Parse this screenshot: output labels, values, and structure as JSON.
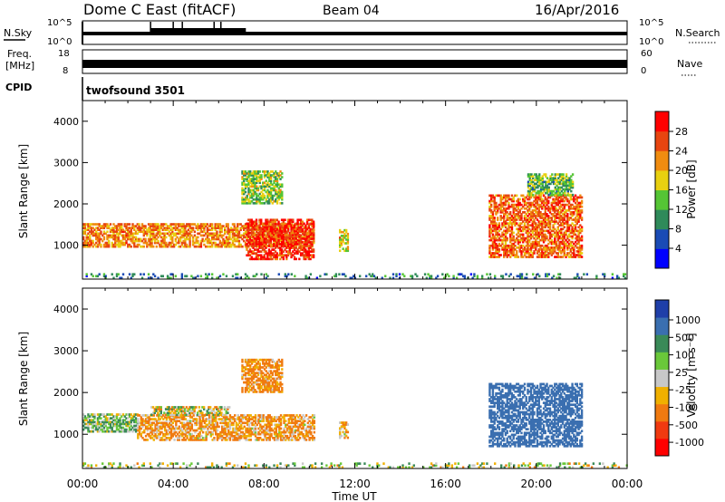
{
  "header": {
    "station": "Dome C East (fitACF)",
    "beam": "Beam 04",
    "date": "16/Apr/2016"
  },
  "top_panels": {
    "nsky_label": "N.Sky",
    "nsky_ticks": [
      "10^5",
      "10^0"
    ],
    "nsearch_label": "N.Search",
    "nsearch_ticks": [
      "10^5",
      "10^0"
    ],
    "freq_label": "Freq.",
    "freq_unit": "[MHz]",
    "freq_ticks": [
      "18",
      "8"
    ],
    "nave_label": "Nave",
    "nave_ticks": [
      "60",
      "0"
    ],
    "cpid_label": "CPID",
    "cpid_value": "twofsound 3501"
  },
  "chart_data": [
    {
      "type": "heatmap",
      "panel": "power",
      "ylabel": "Slant Range [km]",
      "xlabel": "",
      "ylim": [
        180,
        4500
      ],
      "yticks": [
        "1000",
        "2000",
        "3000",
        "4000"
      ],
      "colorbar": {
        "label": "Power [dB]",
        "ticks": [
          "4",
          "8",
          "12",
          "16",
          "20",
          "24",
          "28"
        ],
        "range": [
          0,
          30
        ],
        "colors": [
          "#0000ff",
          "#1a4bb5",
          "#2f8a5a",
          "#55c535",
          "#e8d010",
          "#f08c10",
          "#e84510",
          "#ff0000"
        ]
      },
      "echo_regions": [
        {
          "t": [
            0.0,
            10.2
          ],
          "r": [
            950,
            1500
          ],
          "level": 22
        },
        {
          "t": [
            7.2,
            10.2
          ],
          "r": [
            650,
            1600
          ],
          "level": 28
        },
        {
          "t": [
            7.0,
            8.8
          ],
          "r": [
            2000,
            2800
          ],
          "level": 14
        },
        {
          "t": [
            11.3,
            11.7
          ],
          "r": [
            850,
            1350
          ],
          "level": 18
        },
        {
          "t": [
            17.9,
            22.0
          ],
          "r": [
            700,
            2200
          ],
          "level": 24
        },
        {
          "t": [
            19.6,
            21.6
          ],
          "r": [
            2200,
            2700
          ],
          "level": 12
        },
        {
          "t": [
            0.0,
            24.0
          ],
          "r": [
            190,
            320
          ],
          "level": 8
        }
      ]
    },
    {
      "type": "heatmap",
      "panel": "velocity",
      "ylabel": "Slant Range [km]",
      "xlabel": "Time UT",
      "ylim": [
        180,
        4500
      ],
      "yticks": [
        "1000",
        "2000",
        "3000",
        "4000"
      ],
      "xticks": [
        "00:00",
        "04:00",
        "08:00",
        "12:00",
        "16:00",
        "20:00",
        "00:00"
      ],
      "xlim_hours": [
        0,
        24
      ],
      "colorbar": {
        "label": "Velocity [m s⁻¹]",
        "ticks": [
          "1000",
          "500",
          "100",
          "25",
          "-25",
          "-100",
          "-500",
          "-1000"
        ],
        "colors": [
          "#1f3fa8",
          "#3a6fb0",
          "#3a8a58",
          "#6ac83a",
          "#c8c8c8",
          "#f0b000",
          "#f07a10",
          "#f03a10",
          "#ff0000"
        ]
      },
      "echo_regions": [
        {
          "t": [
            0.0,
            2.4
          ],
          "r": [
            1050,
            1500
          ],
          "velocity": 80
        },
        {
          "t": [
            2.4,
            10.2
          ],
          "r": [
            850,
            1450
          ],
          "velocity": -120
        },
        {
          "t": [
            3.0,
            6.5
          ],
          "r": [
            1450,
            1650
          ],
          "velocity": 0
        },
        {
          "t": [
            7.0,
            8.8
          ],
          "r": [
            2000,
            2800
          ],
          "velocity": -150
        },
        {
          "t": [
            11.3,
            11.7
          ],
          "r": [
            900,
            1300
          ],
          "velocity": -100
        },
        {
          "t": [
            17.9,
            22.0
          ],
          "r": [
            700,
            2200
          ],
          "velocity": 700
        },
        {
          "t": [
            0.0,
            24.0
          ],
          "r": [
            190,
            320
          ],
          "velocity": 40
        }
      ]
    }
  ]
}
